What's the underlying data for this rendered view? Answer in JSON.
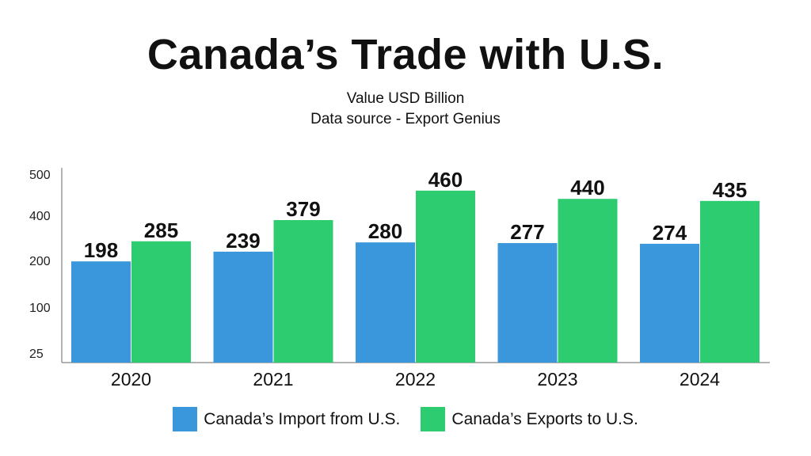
{
  "chart_data": {
    "type": "bar",
    "title": "Canada’s Trade with U.S.",
    "subtitle": [
      "Value USD Billion",
      "Data source - Export Genius"
    ],
    "categories": [
      "2020",
      "2021",
      "2022",
      "2023",
      "2024"
    ],
    "series": [
      {
        "name": "Canada’s Import from U.S.",
        "color": "#3a97dc",
        "values": [
          198,
          239,
          280,
          277,
          274
        ]
      },
      {
        "name": "Canada’s Exports to U.S.",
        "color": "#2ecc71",
        "values": [
          285,
          379,
          460,
          440,
          435
        ]
      }
    ],
    "y_ticks": [
      "500",
      "400",
      "200",
      "100",
      "25"
    ],
    "ylim": [
      0,
      500
    ],
    "grid": false,
    "legend_position": "bottom"
  }
}
